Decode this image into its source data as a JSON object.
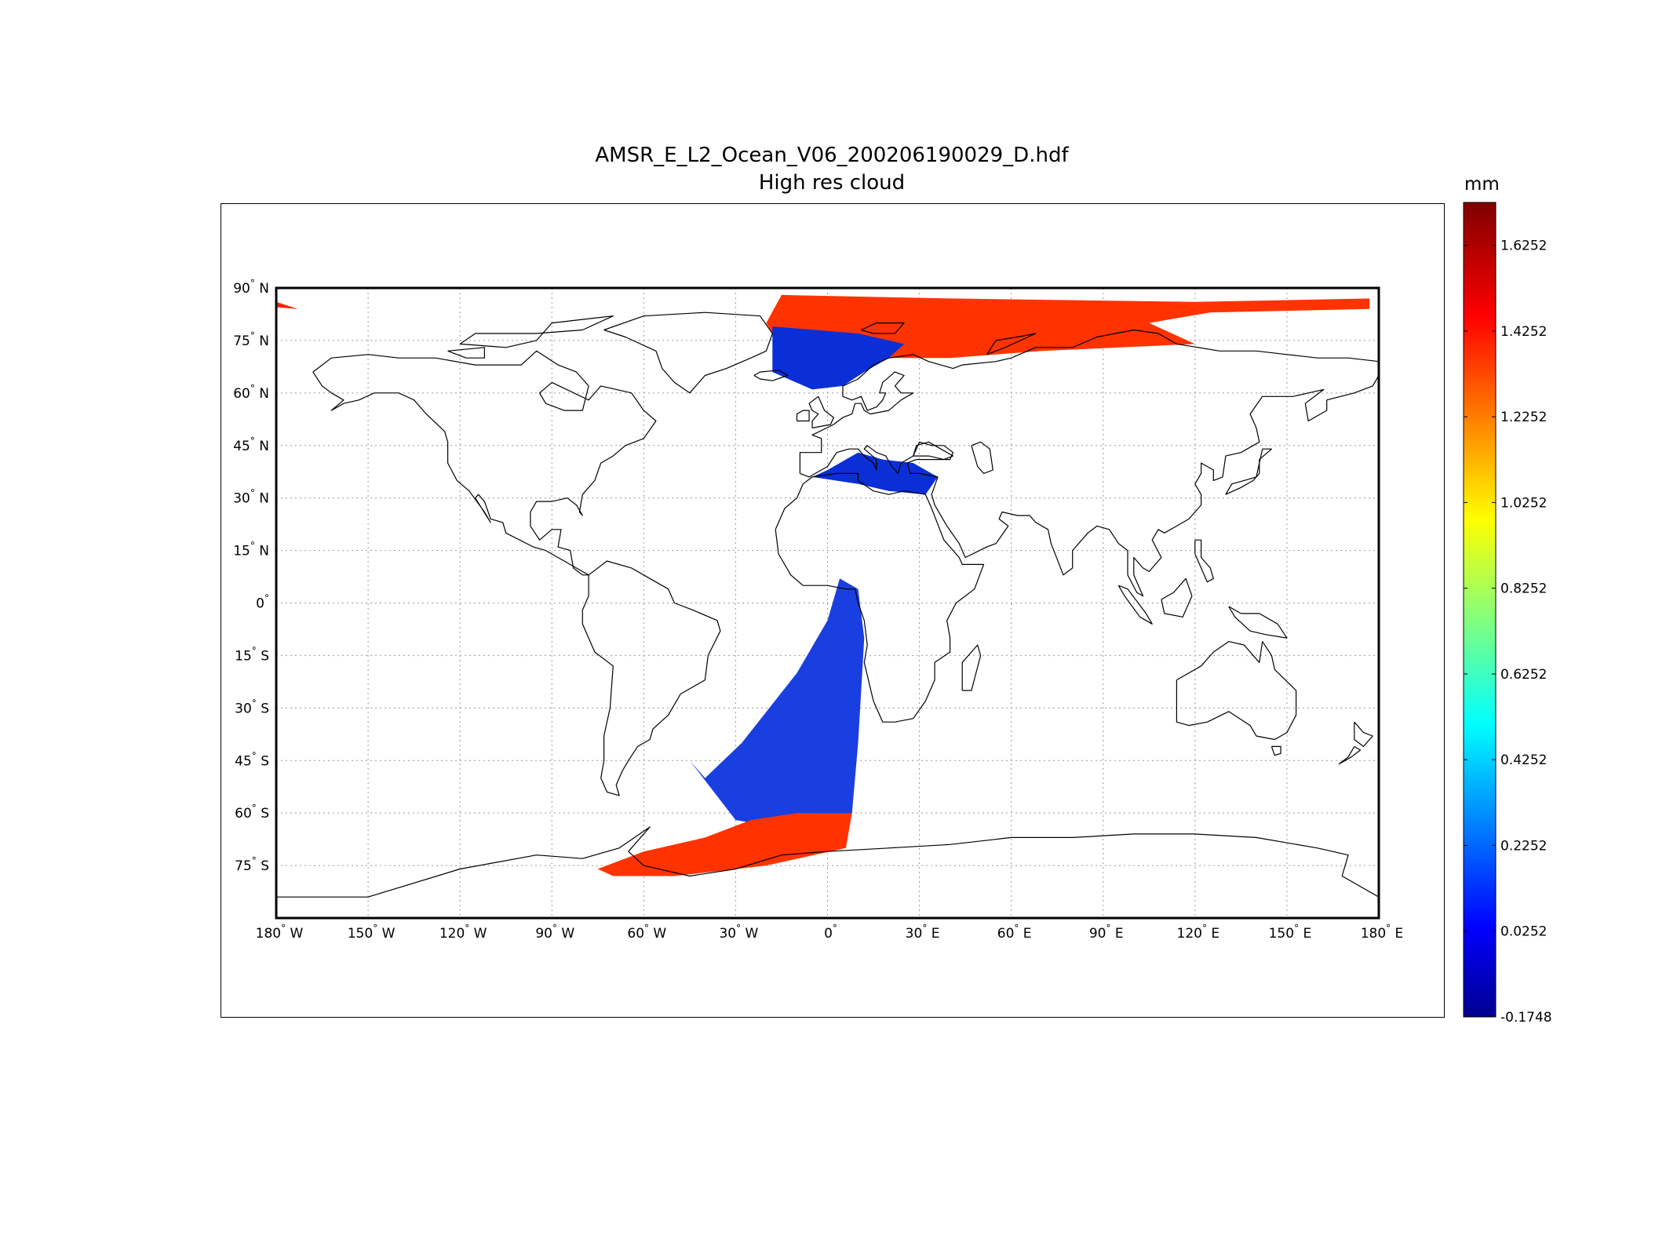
{
  "title": "AMSR_E_L2_Ocean_V06_200206190029_D.hdf",
  "subtitle": "High res cloud",
  "colorbar": {
    "unit": "mm",
    "min": -0.1748,
    "max": 1.7252,
    "ticks": [
      "1.6252",
      "1.4252",
      "1.2252",
      "1.0252",
      "0.8252",
      "0.6252",
      "0.4252",
      "0.2252",
      "0.0252",
      "-0.1748"
    ],
    "colormap": "jet"
  },
  "map": {
    "projection": "equirectangular",
    "lon_range": [
      -180,
      180
    ],
    "lat_range": [
      -90,
      90
    ],
    "grid": "dotted",
    "lat_labels": [
      {
        "lat": 90,
        "deg": "90",
        "hemi": "N"
      },
      {
        "lat": 75,
        "deg": "75",
        "hemi": "N"
      },
      {
        "lat": 60,
        "deg": "60",
        "hemi": "N"
      },
      {
        "lat": 45,
        "deg": "45",
        "hemi": "N"
      },
      {
        "lat": 30,
        "deg": "30",
        "hemi": "N"
      },
      {
        "lat": 15,
        "deg": "15",
        "hemi": "N"
      },
      {
        "lat": 0,
        "deg": "0",
        "hemi": ""
      },
      {
        "lat": -15,
        "deg": "15",
        "hemi": "S"
      },
      {
        "lat": -30,
        "deg": "30",
        "hemi": "S"
      },
      {
        "lat": -45,
        "deg": "45",
        "hemi": "S"
      },
      {
        "lat": -60,
        "deg": "60",
        "hemi": "S"
      },
      {
        "lat": -75,
        "deg": "75",
        "hemi": "S"
      }
    ],
    "lon_labels": [
      {
        "lon": -180,
        "deg": "180",
        "hemi": "W"
      },
      {
        "lon": -150,
        "deg": "150",
        "hemi": "W"
      },
      {
        "lon": -120,
        "deg": "120",
        "hemi": "W"
      },
      {
        "lon": -90,
        "deg": "90",
        "hemi": "W"
      },
      {
        "lon": -60,
        "deg": "60",
        "hemi": "W"
      },
      {
        "lon": -30,
        "deg": "30",
        "hemi": "W"
      },
      {
        "lon": 0,
        "deg": "0",
        "hemi": ""
      },
      {
        "lon": 30,
        "deg": "30",
        "hemi": "E"
      },
      {
        "lon": 60,
        "deg": "60",
        "hemi": "E"
      },
      {
        "lon": 90,
        "deg": "90",
        "hemi": "E"
      },
      {
        "lon": 120,
        "deg": "120",
        "hemi": "E"
      },
      {
        "lon": 150,
        "deg": "150",
        "hemi": "E"
      },
      {
        "lon": 180,
        "deg": "180",
        "hemi": "E"
      }
    ]
  },
  "swaths": [
    {
      "name": "north-atlantic-arctic",
      "value": 1.45,
      "color": "#ff3300",
      "lonlat": [
        [
          -15,
          88
        ],
        [
          40,
          87
        ],
        [
          120,
          86
        ],
        [
          177,
          87
        ],
        [
          177,
          84
        ],
        [
          125,
          83
        ],
        [
          105,
          80
        ],
        [
          120,
          74
        ],
        [
          70,
          72
        ],
        [
          40,
          70
        ],
        [
          15,
          70
        ],
        [
          -15,
          73
        ],
        [
          -20,
          80
        ]
      ]
    },
    {
      "name": "norwegian-sea",
      "value": 0.05,
      "color": "#0a2fd6",
      "lonlat": [
        [
          -18,
          79
        ],
        [
          10,
          77
        ],
        [
          25,
          74
        ],
        [
          20,
          70
        ],
        [
          12,
          66
        ],
        [
          5,
          62
        ],
        [
          -5,
          61
        ],
        [
          -18,
          66
        ]
      ]
    },
    {
      "name": "mediterranean",
      "value": 0.05,
      "color": "#0a2fd6",
      "lonlat": [
        [
          -5,
          36
        ],
        [
          0,
          38
        ],
        [
          10,
          43
        ],
        [
          18,
          41
        ],
        [
          28,
          40
        ],
        [
          36,
          36
        ],
        [
          32,
          31
        ],
        [
          20,
          32
        ],
        [
          10,
          34
        ]
      ]
    },
    {
      "name": "south-atlantic",
      "value": 0.1,
      "color": "#1a3fe0",
      "lonlat": [
        [
          4,
          7
        ],
        [
          10,
          4
        ],
        [
          12,
          -10
        ],
        [
          10,
          -40
        ],
        [
          8,
          -60
        ],
        [
          -10,
          -65
        ],
        [
          -30,
          -62
        ],
        [
          -45,
          -45
        ],
        [
          -40,
          -50
        ],
        [
          -28,
          -40
        ],
        [
          -10,
          -20
        ],
        [
          0,
          -5
        ]
      ]
    },
    {
      "name": "southern-ocean",
      "value": 1.45,
      "color": "#ff3300",
      "lonlat": [
        [
          8,
          -60
        ],
        [
          6,
          -70
        ],
        [
          -20,
          -75
        ],
        [
          -50,
          -78
        ],
        [
          -70,
          -78
        ],
        [
          -75,
          -76
        ],
        [
          -60,
          -71
        ],
        [
          -40,
          -67
        ],
        [
          -25,
          -62
        ],
        [
          -10,
          -60
        ]
      ]
    },
    {
      "name": "aleutian-fragment",
      "value": 1.45,
      "color": "#ff2200",
      "lonlat": [
        [
          -180,
          86
        ],
        [
          -173,
          84
        ],
        [
          -180,
          84.5
        ]
      ]
    }
  ]
}
